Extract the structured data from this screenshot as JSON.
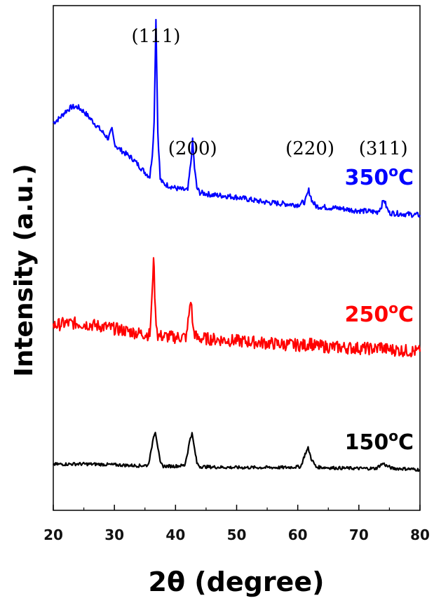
{
  "chart_data": {
    "type": "line",
    "xlabel": "2θ (degree)",
    "ylabel": "Intensity (a.u.)",
    "xlim": [
      20,
      80
    ],
    "x_ticks": [
      "20",
      "30",
      "40",
      "50",
      "60",
      "70",
      "80"
    ],
    "grid": false,
    "peak_annotations": [
      {
        "text": "(111)",
        "x": 36.8
      },
      {
        "text": "(200)",
        "x": 42.8
      },
      {
        "text": "(220)",
        "x": 62.0
      },
      {
        "text": "(311)",
        "x": 74.0
      }
    ],
    "series": [
      {
        "name_value": "350",
        "name_sup": "o",
        "name_unit": "C",
        "color": "#0000ff",
        "x": [
          20,
          21,
          22,
          23,
          24,
          25,
          26,
          27,
          28,
          29,
          29.6,
          30,
          30.5,
          31,
          32,
          33,
          34,
          35,
          35.8,
          36.2,
          36.5,
          36.8,
          37.1,
          37.5,
          38,
          39,
          40,
          41,
          42,
          42.5,
          42.8,
          43.1,
          43.5,
          44,
          46,
          48,
          50,
          52,
          54,
          56,
          58,
          60,
          61.2,
          61.8,
          62.4,
          63,
          65,
          67,
          69,
          71,
          73,
          73.6,
          74.1,
          74.6,
          75,
          77,
          80
        ],
        "values": [
          8.6,
          8.7,
          8.85,
          8.95,
          8.95,
          8.85,
          8.7,
          8.55,
          8.4,
          8.25,
          8.45,
          8.15,
          8.05,
          8.0,
          7.9,
          7.8,
          7.65,
          7.5,
          7.4,
          7.9,
          8.6,
          10.9,
          8.4,
          7.35,
          7.25,
          7.2,
          7.15,
          7.12,
          7.1,
          7.7,
          8.2,
          7.6,
          7.15,
          7.05,
          7.0,
          6.98,
          6.95,
          6.9,
          6.85,
          6.82,
          6.8,
          6.78,
          6.85,
          7.1,
          6.85,
          6.75,
          6.72,
          6.7,
          6.66,
          6.64,
          6.62,
          6.72,
          6.9,
          6.7,
          6.6,
          6.58,
          6.55
        ]
      },
      {
        "name_value": "250",
        "name_sup": "o",
        "name_unit": "C",
        "color": "#ff0000",
        "x": [
          20,
          22,
          24,
          26,
          28,
          30,
          32,
          34,
          35.8,
          36.2,
          36.4,
          36.7,
          37.1,
          38,
          40,
          41.8,
          42.2,
          42.5,
          42.9,
          43.5,
          46,
          50,
          54,
          58,
          61.5,
          62,
          62.5,
          66,
          70,
          73,
          73.5,
          74,
          76,
          80
        ],
        "values": [
          4.1,
          4.15,
          4.15,
          4.12,
          4.08,
          4.03,
          3.98,
          3.93,
          3.9,
          4.8,
          5.7,
          4.4,
          3.88,
          3.86,
          3.84,
          3.85,
          4.35,
          4.7,
          4.0,
          3.82,
          3.8,
          3.76,
          3.72,
          3.68,
          3.66,
          3.76,
          3.65,
          3.62,
          3.6,
          3.58,
          3.66,
          3.58,
          3.56,
          3.52
        ]
      },
      {
        "name_value": "150",
        "name_sup": "o",
        "name_unit": "C",
        "color": "#000000",
        "x": [
          20,
          24,
          28,
          32,
          34,
          35.5,
          36,
          36.4,
          36.7,
          37.0,
          37.5,
          38,
          40,
          41.5,
          42,
          42.4,
          42.7,
          43.0,
          43.5,
          44,
          46,
          50,
          54,
          58,
          60.5,
          61.2,
          61.7,
          62.2,
          63,
          66,
          70,
          72.8,
          73.5,
          74,
          74.5,
          75.5,
          78,
          80
        ],
        "values": [
          1.02,
          1.03,
          1.02,
          1.0,
          0.99,
          1.0,
          1.3,
          1.65,
          1.75,
          1.5,
          1.05,
          0.98,
          0.98,
          1.0,
          1.3,
          1.6,
          1.7,
          1.45,
          1.05,
          0.97,
          0.96,
          0.95,
          0.95,
          0.95,
          0.97,
          1.25,
          1.38,
          1.15,
          0.96,
          0.94,
          0.93,
          0.93,
          1.0,
          1.04,
          0.99,
          0.93,
          0.92,
          0.9
        ]
      }
    ]
  }
}
